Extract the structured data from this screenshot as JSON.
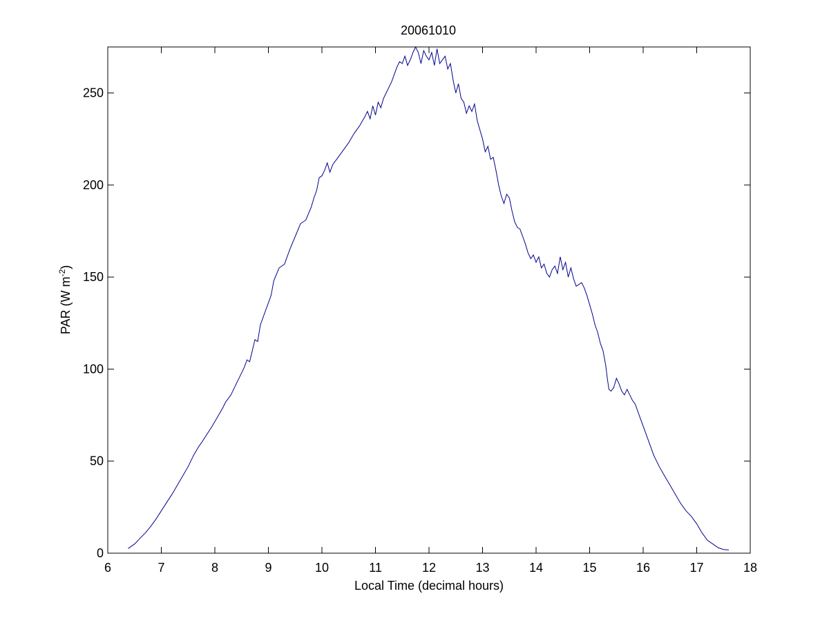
{
  "chart_data": {
    "type": "line",
    "title": "20061010",
    "xlabel": "Local Time (decimal hours)",
    "ylabel": {
      "main": "PAR (W m",
      "sup": "-2",
      "end": ")"
    },
    "xlim": [
      6,
      18
    ],
    "ylim": [
      0,
      275
    ],
    "xticks": [
      6,
      7,
      8,
      9,
      10,
      11,
      12,
      13,
      14,
      15,
      16,
      17,
      18
    ],
    "yticks": [
      0,
      50,
      100,
      150,
      200,
      250
    ],
    "grid": false,
    "series": [
      {
        "color": "#00008b",
        "points": [
          [
            6.38,
            2.5
          ],
          [
            6.5,
            5
          ],
          [
            6.6,
            8
          ],
          [
            6.7,
            11
          ],
          [
            6.8,
            14.5
          ],
          [
            6.9,
            18.5
          ],
          [
            7.0,
            23
          ],
          [
            7.1,
            27.5
          ],
          [
            7.2,
            32
          ],
          [
            7.3,
            37
          ],
          [
            7.4,
            42
          ],
          [
            7.5,
            47
          ],
          [
            7.6,
            53
          ],
          [
            7.7,
            58
          ],
          [
            7.75,
            60
          ],
          [
            7.85,
            64.5
          ],
          [
            7.95,
            69
          ],
          [
            8.05,
            74
          ],
          [
            8.15,
            79
          ],
          [
            8.2,
            82
          ],
          [
            8.3,
            86
          ],
          [
            8.4,
            92
          ],
          [
            8.5,
            98
          ],
          [
            8.55,
            101
          ],
          [
            8.6,
            105
          ],
          [
            8.65,
            104
          ],
          [
            8.7,
            110
          ],
          [
            8.75,
            116
          ],
          [
            8.8,
            115
          ],
          [
            8.85,
            124
          ],
          [
            8.95,
            132
          ],
          [
            9.05,
            140
          ],
          [
            9.1,
            148
          ],
          [
            9.2,
            155
          ],
          [
            9.3,
            157
          ],
          [
            9.4,
            165
          ],
          [
            9.5,
            172
          ],
          [
            9.6,
            179
          ],
          [
            9.7,
            181
          ],
          [
            9.8,
            188
          ],
          [
            9.85,
            193
          ],
          [
            9.9,
            197
          ],
          [
            9.95,
            204
          ],
          [
            10.0,
            205
          ],
          [
            10.05,
            208
          ],
          [
            10.1,
            212
          ],
          [
            10.15,
            207
          ],
          [
            10.2,
            211
          ],
          [
            10.3,
            215
          ],
          [
            10.4,
            219
          ],
          [
            10.5,
            223
          ],
          [
            10.6,
            228
          ],
          [
            10.7,
            232
          ],
          [
            10.8,
            237
          ],
          [
            10.85,
            240
          ],
          [
            10.9,
            236
          ],
          [
            10.95,
            243
          ],
          [
            11.0,
            238
          ],
          [
            11.05,
            245
          ],
          [
            11.1,
            242
          ],
          [
            11.15,
            247
          ],
          [
            11.2,
            250
          ],
          [
            11.3,
            256
          ],
          [
            11.4,
            264
          ],
          [
            11.45,
            267
          ],
          [
            11.5,
            266
          ],
          [
            11.55,
            270
          ],
          [
            11.6,
            265
          ],
          [
            11.65,
            268
          ],
          [
            11.7,
            272
          ],
          [
            11.75,
            275
          ],
          [
            11.8,
            272
          ],
          [
            11.85,
            266
          ],
          [
            11.9,
            273
          ],
          [
            11.95,
            270
          ],
          [
            12.0,
            268
          ],
          [
            12.05,
            272
          ],
          [
            12.1,
            265
          ],
          [
            12.15,
            274
          ],
          [
            12.2,
            266
          ],
          [
            12.25,
            268
          ],
          [
            12.3,
            270
          ],
          [
            12.35,
            263
          ],
          [
            12.4,
            266
          ],
          [
            12.45,
            257
          ],
          [
            12.5,
            250
          ],
          [
            12.55,
            255
          ],
          [
            12.6,
            247
          ],
          [
            12.65,
            245
          ],
          [
            12.7,
            239
          ],
          [
            12.75,
            243
          ],
          [
            12.8,
            240
          ],
          [
            12.85,
            244
          ],
          [
            12.9,
            235
          ],
          [
            12.95,
            230
          ],
          [
            13.0,
            225
          ],
          [
            13.05,
            218
          ],
          [
            13.1,
            221
          ],
          [
            13.15,
            214
          ],
          [
            13.2,
            215
          ],
          [
            13.25,
            208
          ],
          [
            13.3,
            200
          ],
          [
            13.35,
            194
          ],
          [
            13.4,
            190
          ],
          [
            13.45,
            195
          ],
          [
            13.5,
            193
          ],
          [
            13.55,
            186
          ],
          [
            13.6,
            180
          ],
          [
            13.65,
            177
          ],
          [
            13.7,
            176
          ],
          [
            13.75,
            172
          ],
          [
            13.8,
            168
          ],
          [
            13.85,
            163
          ],
          [
            13.9,
            160
          ],
          [
            13.95,
            162
          ],
          [
            14.0,
            158
          ],
          [
            14.05,
            161
          ],
          [
            14.1,
            155
          ],
          [
            14.15,
            157
          ],
          [
            14.2,
            152
          ],
          [
            14.25,
            150
          ],
          [
            14.3,
            154
          ],
          [
            14.35,
            156
          ],
          [
            14.4,
            152
          ],
          [
            14.45,
            161
          ],
          [
            14.5,
            154
          ],
          [
            14.55,
            158
          ],
          [
            14.6,
            150
          ],
          [
            14.65,
            155
          ],
          [
            14.7,
            149
          ],
          [
            14.75,
            145
          ],
          [
            14.8,
            146
          ],
          [
            14.85,
            147
          ],
          [
            14.9,
            144
          ],
          [
            14.95,
            140
          ],
          [
            15.0,
            135
          ],
          [
            15.05,
            130
          ],
          [
            15.1,
            124
          ],
          [
            15.15,
            120
          ],
          [
            15.2,
            114
          ],
          [
            15.25,
            110
          ],
          [
            15.3,
            102
          ],
          [
            15.33,
            95
          ],
          [
            15.36,
            89
          ],
          [
            15.4,
            88
          ],
          [
            15.45,
            90
          ],
          [
            15.5,
            95
          ],
          [
            15.55,
            92
          ],
          [
            15.6,
            88
          ],
          [
            15.65,
            86
          ],
          [
            15.7,
            89
          ],
          [
            15.75,
            86
          ],
          [
            15.8,
            83
          ],
          [
            15.85,
            81
          ],
          [
            15.9,
            77
          ],
          [
            15.95,
            73
          ],
          [
            16.0,
            69
          ],
          [
            16.05,
            65
          ],
          [
            16.1,
            61
          ],
          [
            16.15,
            57
          ],
          [
            16.2,
            53
          ],
          [
            16.3,
            47
          ],
          [
            16.4,
            42
          ],
          [
            16.5,
            37
          ],
          [
            16.6,
            32
          ],
          [
            16.7,
            27
          ],
          [
            16.8,
            23
          ],
          [
            16.9,
            20
          ],
          [
            17.0,
            16
          ],
          [
            17.1,
            11
          ],
          [
            17.2,
            7
          ],
          [
            17.3,
            5
          ],
          [
            17.4,
            3
          ],
          [
            17.5,
            2
          ],
          [
            17.6,
            1.8
          ]
        ]
      }
    ]
  }
}
